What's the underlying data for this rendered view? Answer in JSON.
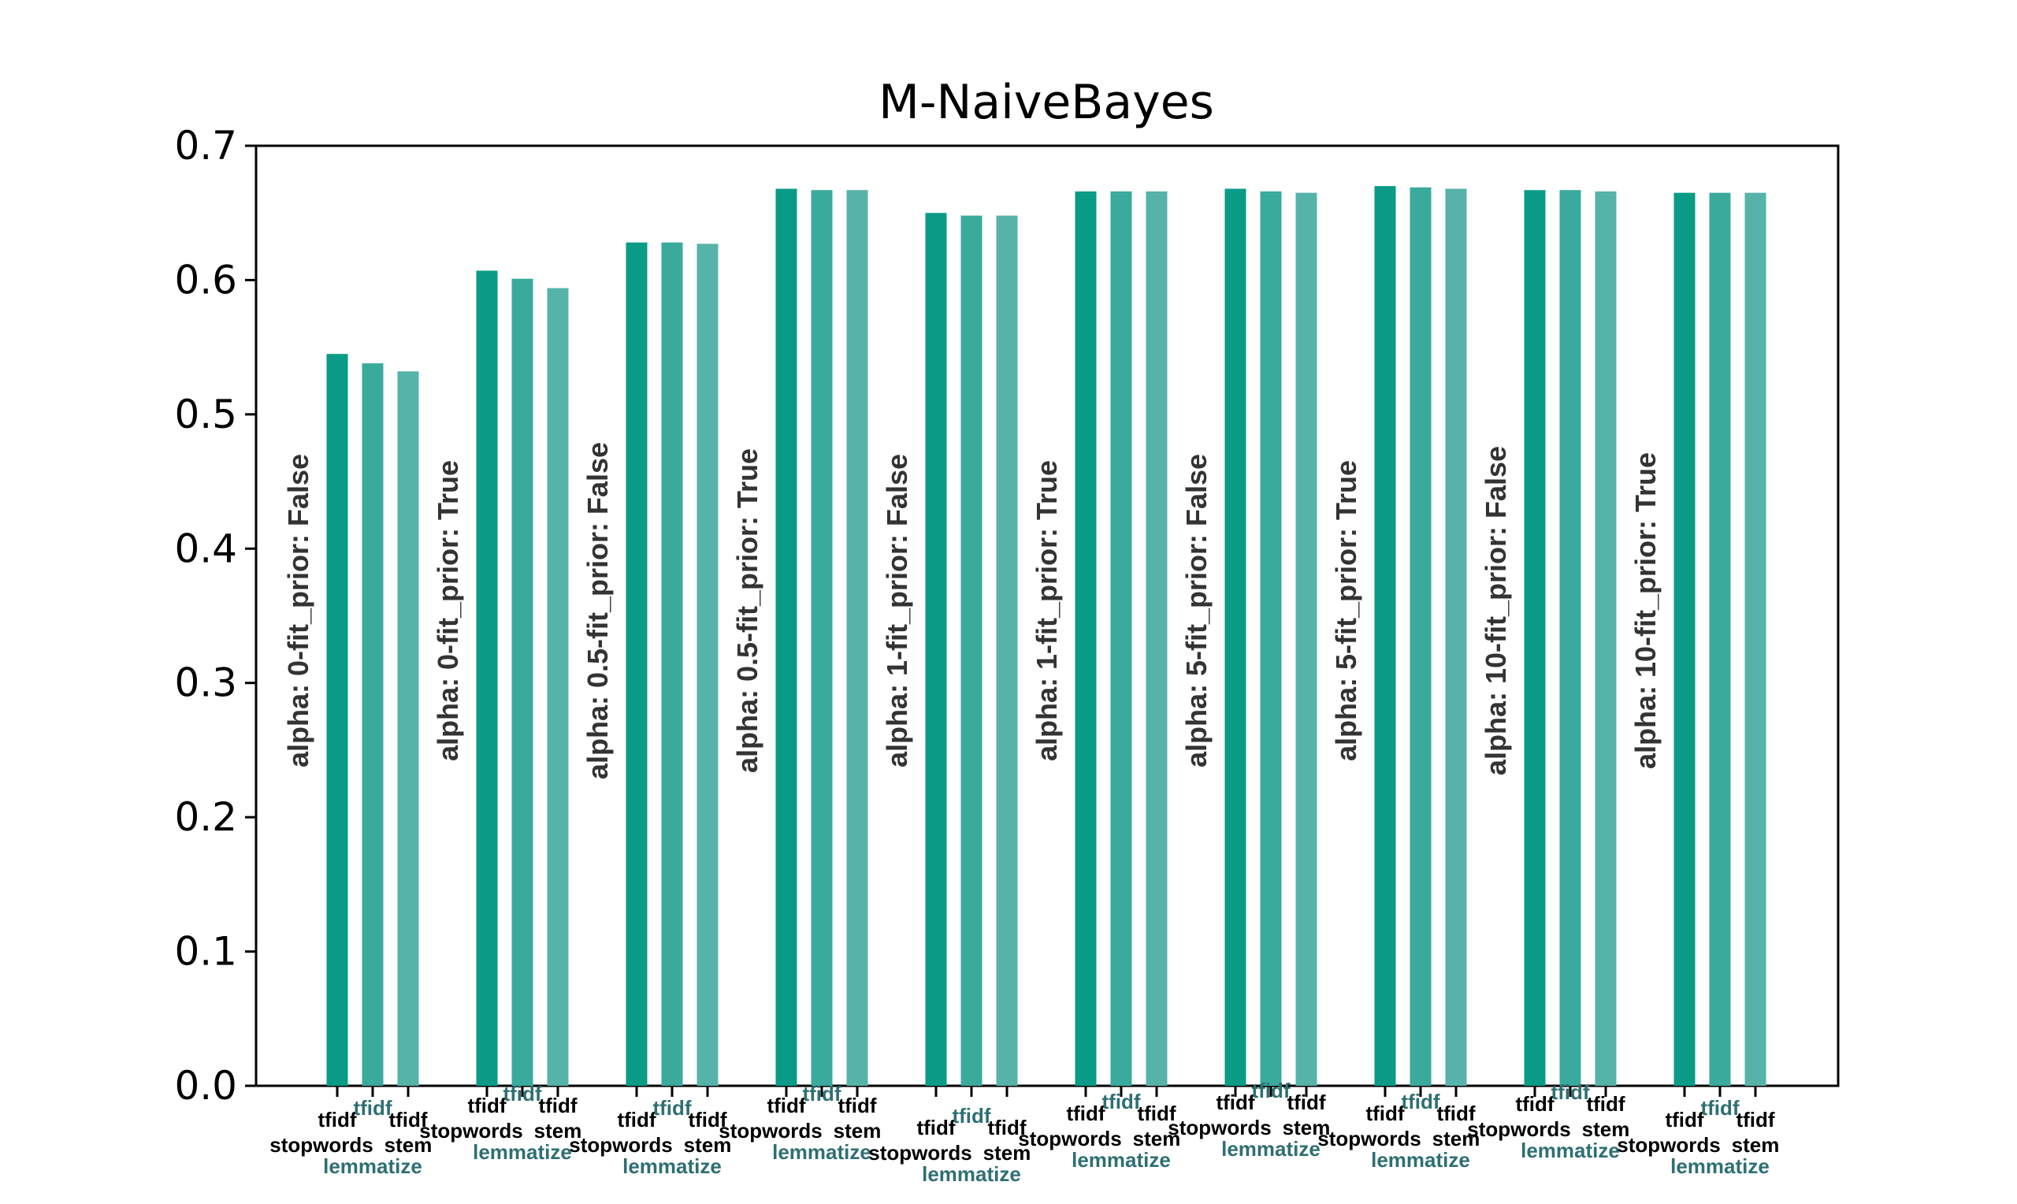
{
  "chart_data": {
    "type": "bar",
    "title": "M-NaiveBayes",
    "xlabel": "",
    "ylabel": "",
    "ylim": [
      0,
      0.7
    ],
    "yticks": [
      "0.0",
      "0.1",
      "0.2",
      "0.3",
      "0.4",
      "0.5",
      "0.6",
      "0.7"
    ],
    "grid": false,
    "legend": "none",
    "groups": [
      {
        "label": "alpha: 0-fit_prior: False",
        "values": [
          0.545,
          0.538,
          0.532
        ]
      },
      {
        "label": "alpha: 0-fit_prior: True",
        "values": [
          0.607,
          0.601,
          0.594
        ]
      },
      {
        "label": "alpha: 0.5-fit_prior: False",
        "values": [
          0.628,
          0.628,
          0.627
        ]
      },
      {
        "label": "alpha: 0.5-fit_prior: True",
        "values": [
          0.668,
          0.667,
          0.667
        ]
      },
      {
        "label": "alpha: 1-fit_prior: False",
        "values": [
          0.65,
          0.648,
          0.648
        ]
      },
      {
        "label": "alpha: 1-fit_prior: True",
        "values": [
          0.666,
          0.666,
          0.666
        ]
      },
      {
        "label": "alpha: 5-fit_prior: False",
        "values": [
          0.668,
          0.666,
          0.665
        ]
      },
      {
        "label": "alpha: 5-fit_prior: True",
        "values": [
          0.67,
          0.669,
          0.668
        ]
      },
      {
        "label": "alpha: 10-fit_prior: False",
        "values": [
          0.667,
          0.667,
          0.666
        ]
      },
      {
        "label": "alpha: 10-fit_prior: True",
        "values": [
          0.665,
          0.665,
          0.665
        ]
      }
    ],
    "bar_tick_labels": [
      {
        "lines": [
          "tfidf",
          "stopwords"
        ],
        "color": "#000000"
      },
      {
        "lines": [
          "tfidf",
          "lemmatize"
        ],
        "color": "#2e6f73"
      },
      {
        "lines": [
          "tfidf",
          "stem"
        ],
        "color": "#000000"
      }
    ],
    "colors": [
      "#0a9b87",
      "#3aaa9d",
      "#56b3a9"
    ]
  }
}
